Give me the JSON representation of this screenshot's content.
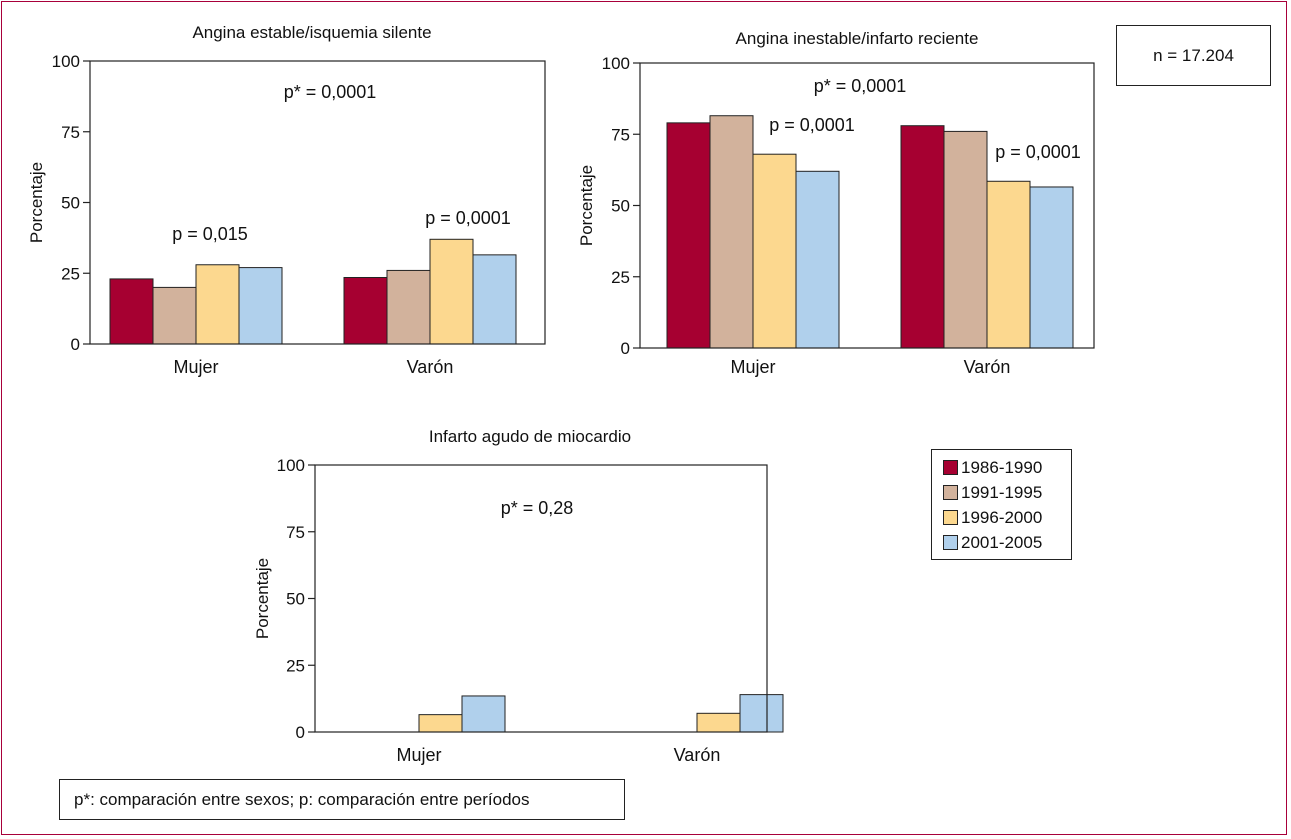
{
  "colors": {
    "frame": "#a8003a",
    "series": [
      "#a60031",
      "#d2b29c",
      "#fcd88f",
      "#b0d0ec"
    ]
  },
  "n_label": "n = 17.204",
  "footnote": "p*: comparación entre sexos; p: comparación entre períodos",
  "legend": [
    "1986-1990",
    "1991-1995",
    "1996-2000",
    "2001-2005"
  ],
  "chart_data": [
    {
      "type": "bar",
      "title": "Angina estable/isquemia silente",
      "ylabel": "Porcentaje",
      "xlabel": "",
      "ylim": [
        0,
        100
      ],
      "yticks": [
        0,
        25,
        50,
        75,
        100
      ],
      "categories": [
        "Mujer",
        "Varón"
      ],
      "series": [
        {
          "name": "1986-1990",
          "values": [
            23,
            23.5
          ]
        },
        {
          "name": "1991-1995",
          "values": [
            20,
            26
          ]
        },
        {
          "name": "1996-2000",
          "values": [
            28,
            37
          ]
        },
        {
          "name": "2001-2005",
          "values": [
            27,
            31.5
          ]
        }
      ],
      "annotations": [
        "p* = 0,0001",
        "p = 0,015",
        "p = 0,0001"
      ]
    },
    {
      "type": "bar",
      "title": "Angina inestable/infarto reciente",
      "ylabel": "Porcentaje",
      "xlabel": "",
      "ylim": [
        0,
        100
      ],
      "yticks": [
        0,
        25,
        50,
        75,
        100
      ],
      "categories": [
        "Mujer",
        "Varón"
      ],
      "series": [
        {
          "name": "1986-1990",
          "values": [
            79,
            78
          ]
        },
        {
          "name": "1991-1995",
          "values": [
            81.5,
            76
          ]
        },
        {
          "name": "1996-2000",
          "values": [
            68,
            58.5
          ]
        },
        {
          "name": "2001-2005",
          "values": [
            62,
            56.5
          ]
        }
      ],
      "annotations": [
        "p* = 0,0001",
        "p = 0,0001",
        "p = 0,0001"
      ]
    },
    {
      "type": "bar",
      "title": "Infarto agudo de miocardio",
      "ylabel": "Porcentaje",
      "xlabel": "",
      "ylim": [
        0,
        100
      ],
      "yticks": [
        0,
        25,
        50,
        75,
        100
      ],
      "categories": [
        "Mujer",
        "Varón"
      ],
      "series": [
        {
          "name": "1986-1990",
          "values": [
            0,
            0
          ]
        },
        {
          "name": "1991-1995",
          "values": [
            0,
            0
          ]
        },
        {
          "name": "1996-2000",
          "values": [
            6.5,
            7
          ]
        },
        {
          "name": "2001-2005",
          "values": [
            13.5,
            14
          ]
        }
      ],
      "annotations": [
        "p* = 0,28"
      ]
    }
  ]
}
